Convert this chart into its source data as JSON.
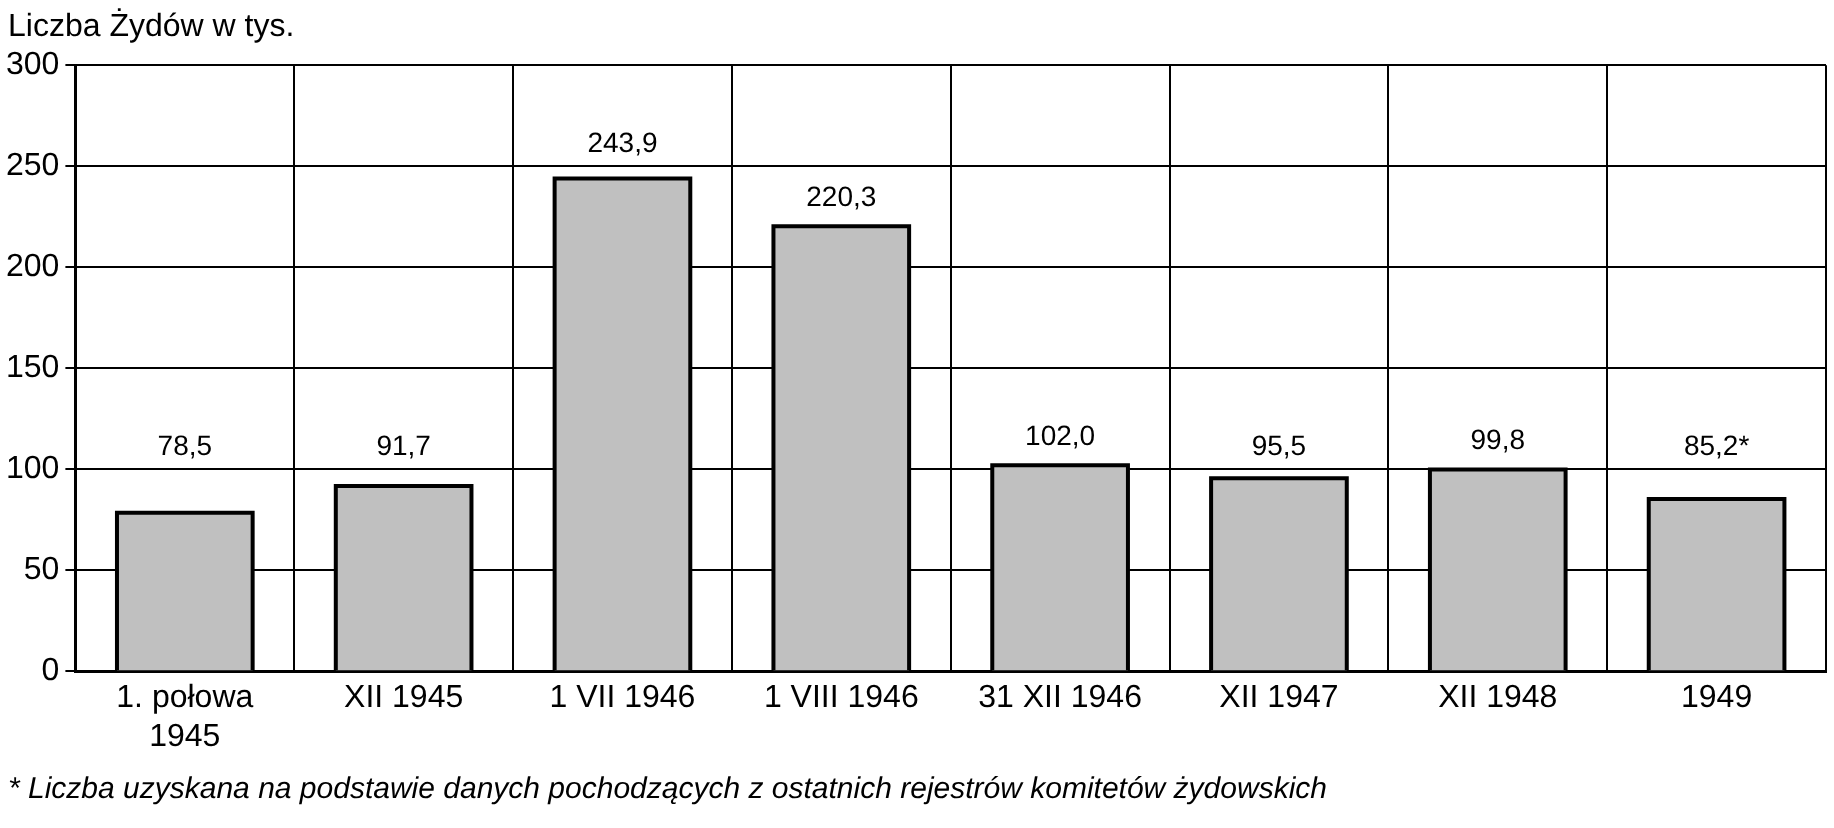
{
  "chart_data": {
    "type": "bar",
    "ylabel": "Liczba Żydów w tys.",
    "categories": [
      "1. połowa 1945",
      "XII 1945",
      "1 VII 1946",
      "1 VIII 1946",
      "31 XII 1946",
      "XII 1947",
      "XII 1948",
      "1949"
    ],
    "values": [
      78.5,
      91.7,
      243.9,
      220.3,
      102.0,
      95.5,
      99.8,
      85.2
    ],
    "value_labels": [
      "78,5",
      "91,7",
      "243,9",
      "220,3",
      "102,0",
      "95,5",
      "99,8",
      "85,2*"
    ],
    "color": "#c0c0c0",
    "ylim": [
      0,
      300
    ],
    "yticks": [
      0,
      50,
      100,
      150,
      200,
      250,
      300
    ],
    "grid": true,
    "legend": false,
    "annotations": [
      "* Liczba uzyskana na podstawie danych pochodzących z ostatnich rejestrów komitetów żydowskich"
    ]
  }
}
